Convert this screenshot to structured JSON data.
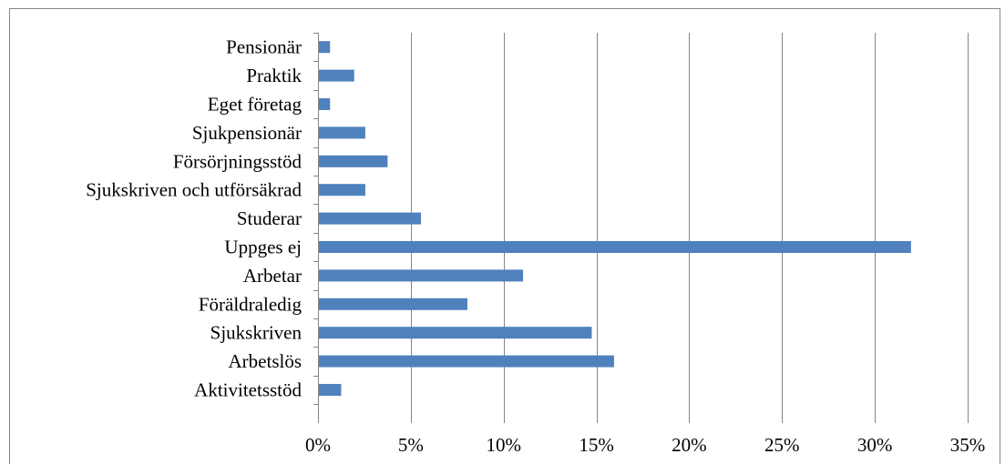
{
  "chart_data": {
    "type": "bar",
    "orientation": "horizontal",
    "categories": [
      "Pensionär",
      "Praktik",
      "Eget företag",
      "Sjukpensionär",
      "Försörjningsstöd",
      "Sjukskriven och utförsäkrad",
      "Studerar",
      "Uppges ej",
      "Arbetar",
      "Föräldraledig",
      "Sjukskriven",
      "Arbetslös",
      "Aktivitetsstöd"
    ],
    "values": [
      0.6,
      1.9,
      0.6,
      2.5,
      3.7,
      2.5,
      5.5,
      31.9,
      11.0,
      8.0,
      14.7,
      15.9,
      1.2
    ],
    "value_unit": "%",
    "xlim": [
      0,
      35
    ],
    "ticks": [
      "0%",
      "5%",
      "10%",
      "15%",
      "20%",
      "25%",
      "30%",
      "35%"
    ],
    "tick_values": [
      0,
      5,
      10,
      15,
      20,
      25,
      30,
      35
    ],
    "grid": "vertical",
    "bar_color": "#4f81bd",
    "grid_color": "#868686"
  }
}
